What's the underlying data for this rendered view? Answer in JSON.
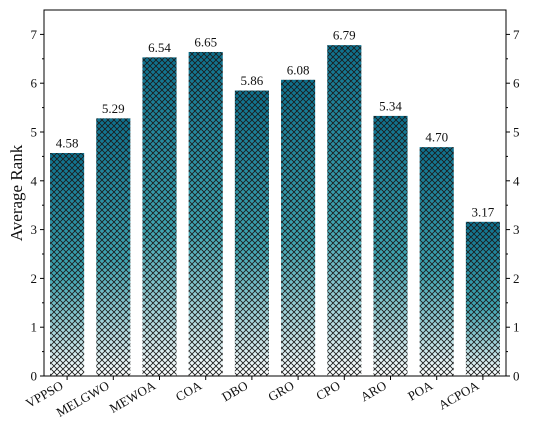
{
  "chart_data": {
    "type": "bar",
    "title": "",
    "xlabel": "",
    "ylabel": "Average Rank",
    "categories": [
      "VPPSO",
      "MELGWO",
      "MEWOA",
      "COA",
      "DBO",
      "GRO",
      "CPO",
      "ARO",
      "POA",
      "ACPOA"
    ],
    "values": [
      4.58,
      5.29,
      6.54,
      6.65,
      5.86,
      6.08,
      6.79,
      5.34,
      4.7,
      3.17
    ],
    "value_labels": [
      "4.58",
      "5.29",
      "6.54",
      "6.65",
      "5.86",
      "6.08",
      "6.79",
      "5.34",
      "4.70",
      "3.17"
    ],
    "ylim": [
      0,
      7.5
    ],
    "yticks": [
      0,
      1,
      2,
      3,
      4,
      5,
      6,
      7
    ],
    "right_axis_mirrored": true,
    "grid": false,
    "legend": "none",
    "bar_fill": {
      "pattern": "crosshatch",
      "gradient_top": "#0d6f8c",
      "gradient_bottom": "#ffffff",
      "hatch_color": "#1a1a1a",
      "outline": "#ffffff"
    }
  }
}
